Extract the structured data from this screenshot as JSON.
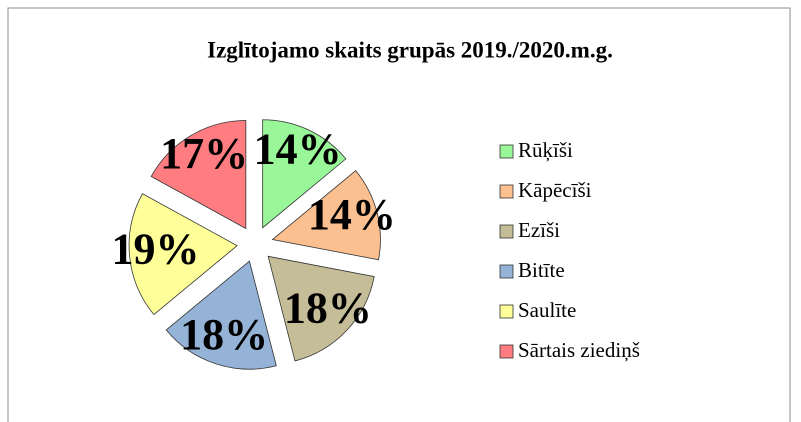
{
  "chart_data": {
    "type": "pie",
    "title": "Izglītojamo skaits grupās 2019./2020.m.g.",
    "categories": [
      "Rūķīši",
      "Kāpēcīši",
      "Ezīši",
      "Bitīte",
      "Saulīte",
      "Sārtais ziediņš"
    ],
    "values": [
      14,
      14,
      18,
      18,
      19,
      17
    ],
    "value_labels": [
      "14%",
      "14%",
      "18%",
      "18%",
      "19%",
      "17%"
    ],
    "colors": [
      "#99f799",
      "#fcbf8f",
      "#c4bd97",
      "#95b3d7",
      "#ffff99",
      "#ff7c80"
    ],
    "legend": "right"
  }
}
